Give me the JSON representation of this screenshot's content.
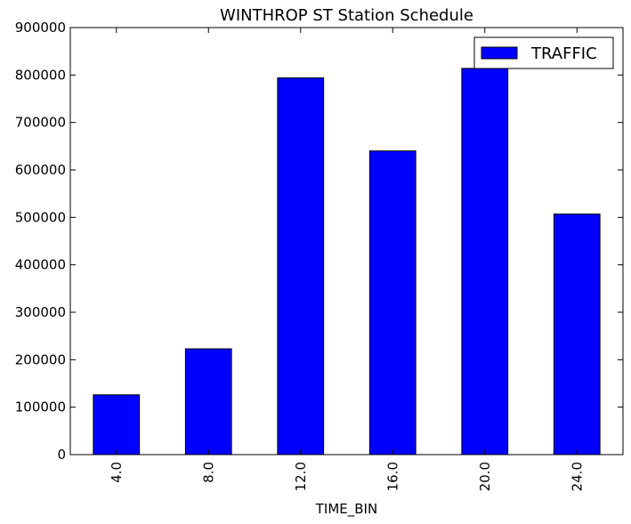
{
  "chart_data": {
    "type": "bar",
    "title": "WINTHROP ST Station Schedule",
    "xlabel": "TIME_BIN",
    "ylabel": "",
    "categories": [
      "4.0",
      "8.0",
      "12.0",
      "16.0",
      "20.0",
      "24.0"
    ],
    "series": [
      {
        "name": "TRAFFIC",
        "values": [
          126000,
          223000,
          794000,
          640000,
          814000,
          507000
        ],
        "color": "#0000ff"
      }
    ],
    "ylim": [
      0,
      900000
    ],
    "yticks": [
      0,
      100000,
      200000,
      300000,
      400000,
      500000,
      600000,
      700000,
      800000,
      900000
    ],
    "ytick_labels": [
      "0",
      "100000",
      "200000",
      "300000",
      "400000",
      "500000",
      "600000",
      "700000",
      "800000",
      "900000"
    ],
    "grid": false,
    "legend_position": "top-right",
    "xtick_rotation": "vertical"
  }
}
